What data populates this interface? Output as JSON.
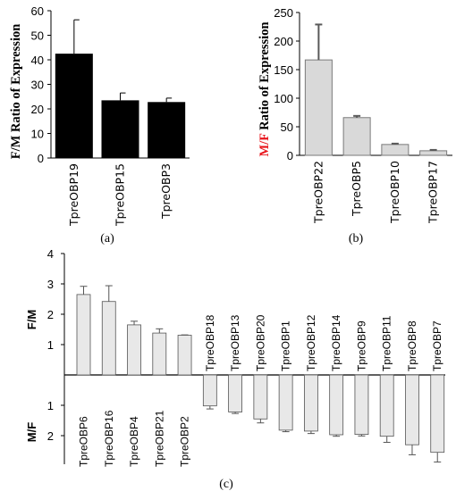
{
  "chart_data": [
    {
      "panel": "(a)",
      "type": "bar",
      "categories": [
        "TpreOBP19",
        "TpreOBP15",
        "TpreOBP3"
      ],
      "values": [
        42.5,
        23.5,
        22.8
      ],
      "errors": [
        13.8,
        3.0,
        1.6
      ],
      "ylabel": "F/M Ratio of Expression",
      "ylim": [
        0,
        60
      ],
      "yticks": [
        0,
        10,
        20,
        30,
        40,
        50,
        60
      ],
      "bar_color": "#000000",
      "grid": false
    },
    {
      "panel": "(b)",
      "type": "bar",
      "categories": [
        "TpreOBP22",
        "TpreOBP5",
        "TpreOBP10",
        "TpreOBP17"
      ],
      "values": [
        167,
        66,
        19,
        8
      ],
      "errors": [
        62,
        3,
        1.5,
        1.5
      ],
      "ylabel_prefix": "M/F",
      "ylabel_suffix": " Ratio of Expression",
      "ylabel_prefix_color": "#e8141b",
      "ylim": [
        0,
        250
      ],
      "yticks": [
        0,
        50,
        100,
        150,
        200,
        250
      ],
      "bar_color": "#d9d9d9",
      "grid": false
    },
    {
      "panel": "(c)",
      "type": "bar",
      "categories": [
        "TpreOBP6",
        "TpreOBP16",
        "TpreOBP4",
        "TpreOBP21",
        "TpreOBP2",
        "TpreOBP18",
        "TpreOBP13",
        "TpreOBP20",
        "TpreOBP1",
        "TpreOBP12",
        "TpreOBP14",
        "TpreOBP9",
        "TpreOBP11",
        "TpreOBP8",
        "TpreOBP7"
      ],
      "values": [
        2.65,
        2.42,
        1.65,
        1.38,
        1.31,
        -1.02,
        -1.22,
        -1.45,
        -1.82,
        -1.85,
        -1.97,
        -1.96,
        -2.02,
        -2.3,
        -2.55
      ],
      "errors": [
        0.27,
        0.52,
        0.12,
        0.14,
        0.01,
        0.1,
        0.05,
        0.13,
        0.05,
        0.08,
        0.05,
        0.05,
        0.2,
        0.33,
        0.32
      ],
      "upper_label": "F/M",
      "lower_label": "M/F",
      "yticks_upper": [
        1,
        2,
        3,
        4
      ],
      "yticks_lower": [
        1,
        2
      ],
      "ylim": [
        -2.9,
        4
      ],
      "bar_color": "#e8e8e8",
      "grid": false
    }
  ]
}
